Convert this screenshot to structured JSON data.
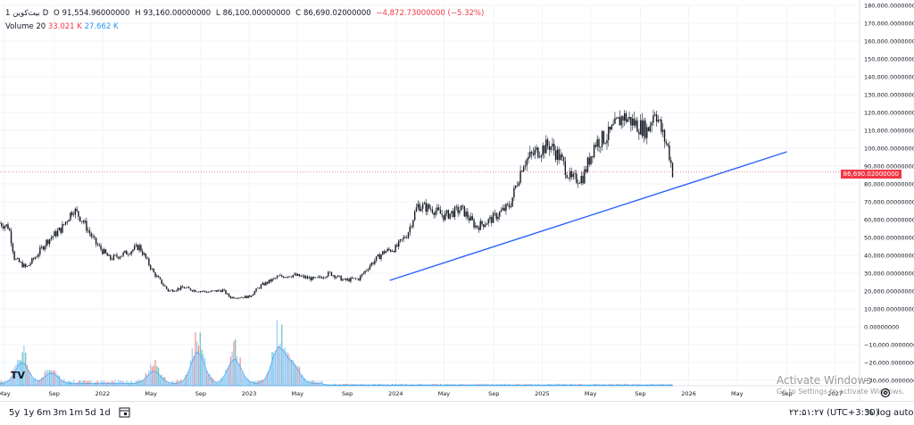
{
  "legend": {
    "symbol": "بیت‌کوین",
    "interval": "1D",
    "open_label": "O",
    "open": "91,554.96000000",
    "high_label": "H",
    "high": "93,160.00000000",
    "low_label": "L",
    "low": "86,100.00000000",
    "close_label": "C",
    "close": "86,690.02000000",
    "change": "−4,872.73000000 (−5.32%)",
    "volume_label": "Volume 20",
    "volume_a": "33.021 K",
    "volume_b": "27.662 K"
  },
  "price_tag": "86,690.02000000",
  "bottom_bar": {
    "ranges": [
      "5y",
      "1y",
      "6m",
      "3m",
      "1m",
      "5d",
      "1d"
    ],
    "time": "۲۲:۵۱:۲۷ (UTC+3:30)",
    "percent": "%",
    "log": "log",
    "auto": "auto"
  },
  "watermark": {
    "title": "Activate Windows",
    "subtitle": "Go to Settings to activate Windows."
  },
  "logo": "TV",
  "colors": {
    "up": "#26a69a",
    "down": "#ef5350",
    "trend": "#2962ff",
    "price": "#f23645"
  },
  "chart_data": {
    "type": "candlestick",
    "title": "بیت‌کوین · 1D",
    "y_axis": {
      "min": -30000,
      "max": 180000,
      "ticks": [
        180000,
        170000,
        160000,
        150000,
        140000,
        130000,
        120000,
        110000,
        100000,
        90000,
        80000,
        70000,
        60000,
        50000,
        40000,
        30000,
        20000,
        10000,
        0,
        -10000,
        -20000,
        -30000
      ],
      "tick_labels": [
        "180,000.00000000",
        "170,000.00000000",
        "160,000.00000000",
        "150,000.00000000",
        "140,000.00000000",
        "130,000.00000000",
        "120,000.00000000",
        "110,000.00000000",
        "100,000.00000000",
        "90,000.00000000",
        "80,000.00000000",
        "70,000.00000000",
        "60,000.00000000",
        "50,000.00000000",
        "40,000.00000000",
        "30,000.00000000",
        "20,000.00000000",
        "10,000.00000000",
        "0.00000000",
        "−10,000.00000000",
        "−20,000.00000000",
        "−30,000.00000000"
      ]
    },
    "x_axis": {
      "start": 2021.3,
      "end": 2027.3,
      "ticks": [
        {
          "t": 2021.33,
          "label": "May"
        },
        {
          "t": 2021.67,
          "label": "Sep"
        },
        {
          "t": 2022.0,
          "label": "2022"
        },
        {
          "t": 2022.33,
          "label": "May"
        },
        {
          "t": 2022.67,
          "label": "Sep"
        },
        {
          "t": 2023.0,
          "label": "2023"
        },
        {
          "t": 2023.33,
          "label": "May"
        },
        {
          "t": 2023.67,
          "label": "Sep"
        },
        {
          "t": 2024.0,
          "label": "2024"
        },
        {
          "t": 2024.33,
          "label": "May"
        },
        {
          "t": 2024.67,
          "label": "Sep"
        },
        {
          "t": 2025.0,
          "label": "2025"
        },
        {
          "t": 2025.33,
          "label": "May"
        },
        {
          "t": 2025.67,
          "label": "Sep"
        },
        {
          "t": 2026.0,
          "label": "2026"
        },
        {
          "t": 2026.33,
          "label": "May"
        },
        {
          "t": 2026.67,
          "label": "Sep"
        },
        {
          "t": 2027.0,
          "label": "2027"
        }
      ]
    },
    "price_anchors": [
      [
        2021.3,
        58000
      ],
      [
        2021.36,
        56000
      ],
      [
        2021.4,
        38000
      ],
      [
        2021.48,
        33000
      ],
      [
        2021.55,
        40000
      ],
      [
        2021.62,
        48000
      ],
      [
        2021.72,
        55000
      ],
      [
        2021.8,
        66000
      ],
      [
        2021.86,
        60000
      ],
      [
        2021.95,
        47000
      ],
      [
        2022.05,
        38000
      ],
      [
        2022.15,
        41000
      ],
      [
        2022.25,
        45000
      ],
      [
        2022.35,
        30000
      ],
      [
        2022.45,
        20000
      ],
      [
        2022.55,
        22000
      ],
      [
        2022.62,
        20500
      ],
      [
        2022.72,
        19500
      ],
      [
        2022.82,
        20500
      ],
      [
        2022.87,
        16500
      ],
      [
        2023.0,
        16800
      ],
      [
        2023.08,
        23000
      ],
      [
        2023.2,
        28000
      ],
      [
        2023.3,
        29000
      ],
      [
        2023.45,
        26500
      ],
      [
        2023.55,
        30000
      ],
      [
        2023.65,
        26000
      ],
      [
        2023.75,
        27000
      ],
      [
        2023.83,
        35000
      ],
      [
        2023.92,
        42000
      ],
      [
        2024.0,
        44000
      ],
      [
        2024.08,
        52000
      ],
      [
        2024.15,
        68000
      ],
      [
        2024.25,
        66000
      ],
      [
        2024.33,
        62000
      ],
      [
        2024.45,
        66000
      ],
      [
        2024.55,
        56000
      ],
      [
        2024.65,
        60000
      ],
      [
        2024.78,
        68000
      ],
      [
        2024.87,
        92000
      ],
      [
        2024.96,
        98000
      ],
      [
        2025.05,
        102000
      ],
      [
        2025.12,
        95000
      ],
      [
        2025.2,
        82000
      ],
      [
        2025.28,
        84000
      ],
      [
        2025.36,
        103000
      ],
      [
        2025.45,
        107000
      ],
      [
        2025.55,
        118000
      ],
      [
        2025.65,
        113000
      ],
      [
        2025.72,
        110000
      ],
      [
        2025.77,
        122000
      ],
      [
        2025.82,
        108000
      ],
      [
        2025.86,
        100000
      ],
      [
        2025.89,
        86690
      ]
    ],
    "trend_line": {
      "from": [
        2023.96,
        26000
      ],
      "to": [
        2026.67,
        98000
      ]
    },
    "last_close": 86690.02,
    "volume_bursts": [
      {
        "t": 2021.45,
        "level": 0.6
      },
      {
        "t": 2021.65,
        "level": 0.3
      },
      {
        "t": 2022.35,
        "level": 0.35
      },
      {
        "t": 2022.65,
        "level": 0.9
      },
      {
        "t": 2022.9,
        "level": 0.7
      },
      {
        "t": 2023.2,
        "level": 1.0
      },
      {
        "t": 2023.3,
        "level": 0.5
      }
    ]
  }
}
